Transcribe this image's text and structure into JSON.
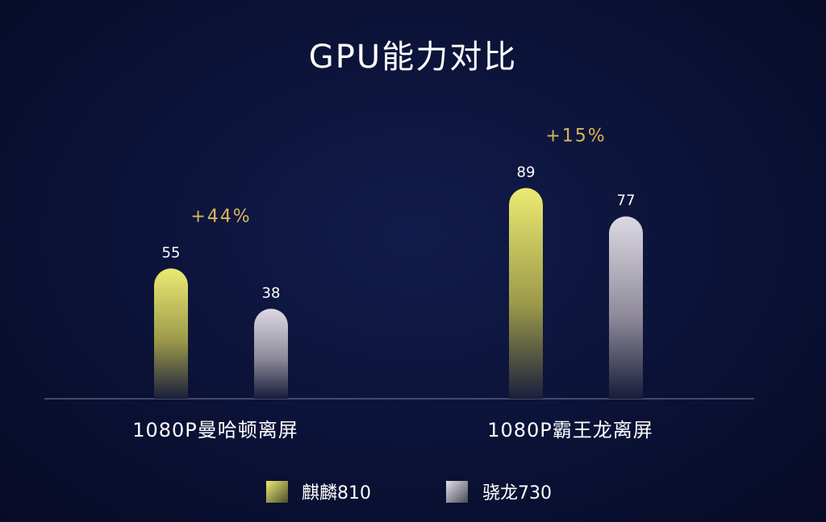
{
  "chart_data": {
    "type": "bar",
    "title": "GPU能力对比",
    "categories": [
      "1080P曼哈顿离屏",
      "1080P霸王龙离屏"
    ],
    "series": [
      {
        "name": "麒麟810",
        "values": [
          55,
          89
        ]
      },
      {
        "name": "骁龙730",
        "values": [
          38,
          77
        ]
      }
    ],
    "annotations": [
      "+44%",
      "+15%"
    ],
    "legend_position": "bottom-center",
    "grid": false,
    "ylim": [
      0,
      100
    ]
  },
  "colors": {
    "background": "#0b1236",
    "series_top": [
      "#e7e26a",
      "#d6d3dd"
    ],
    "annotation": "#d9b65a",
    "baseline": "#7a8099"
  }
}
